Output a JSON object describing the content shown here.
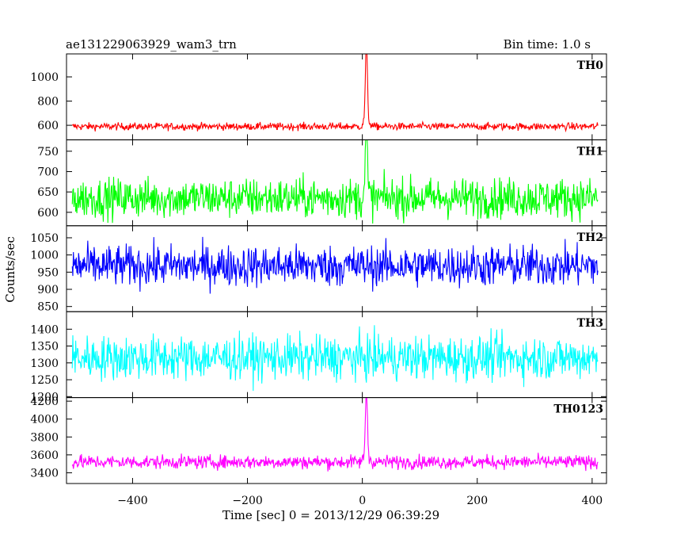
{
  "title": "ae131229063929_wam3_trn",
  "bin_time": "Bin time: 1.0 s",
  "chart_data": {
    "type": "line",
    "title": "ae131229063929_wam3_trn",
    "bin_time": "Bin time: 1.0 s",
    "xlabel": "Time [sec] 0 = 2013/12/29 06:39:29",
    "ylabel": "Counts/sec",
    "xlim": [
      -515,
      425
    ],
    "x_ticks": [
      -400,
      -200,
      0,
      200,
      400
    ],
    "x_tick_labels": [
      "−400",
      "−200",
      "0",
      "200",
      "400"
    ],
    "x_range": [
      -505,
      410
    ],
    "grid": false,
    "panels": [
      {
        "name": "TH0",
        "color": "#ff0000",
        "ylim": [
          480,
          1190
        ],
        "yticks": [
          600,
          800,
          1000
        ],
        "baseline": 590,
        "noise": 28,
        "peak_x": 7,
        "peak": 1190,
        "values": [
          {
            "x": -500,
            "y": 596
          },
          {
            "x": -300,
            "y": 584
          },
          {
            "x": -100,
            "y": 592
          },
          {
            "x": 0,
            "y": 640
          },
          {
            "x": 5,
            "y": 1000
          },
          {
            "x": 7,
            "y": 1190
          },
          {
            "x": 15,
            "y": 620
          },
          {
            "x": 200,
            "y": 590
          },
          {
            "x": 410,
            "y": 600
          }
        ]
      },
      {
        "name": "TH1",
        "color": "#00ff00",
        "ylim": [
          567,
          778
        ],
        "yticks": [
          600,
          650,
          700,
          750
        ],
        "baseline": 635,
        "noise": 45,
        "peak_x": 7,
        "peak": 778,
        "values": [
          {
            "x": -500,
            "y": 640
          },
          {
            "x": -300,
            "y": 630
          },
          {
            "x": -100,
            "y": 635
          },
          {
            "x": 7,
            "y": 778
          },
          {
            "x": 200,
            "y": 640
          },
          {
            "x": 410,
            "y": 650
          }
        ]
      },
      {
        "name": "TH2",
        "color": "#0000ff",
        "ylim": [
          835,
          1085
        ],
        "yticks": [
          850,
          900,
          950,
          1000,
          1050
        ],
        "baseline": 968,
        "noise": 55,
        "peak_x": null,
        "peak": null,
        "values": [
          {
            "x": -500,
            "y": 970
          },
          {
            "x": -300,
            "y": 965
          },
          {
            "x": 0,
            "y": 968
          },
          {
            "x": 200,
            "y": 960
          },
          {
            "x": 410,
            "y": 975
          }
        ]
      },
      {
        "name": "TH3",
        "color": "#00ffff",
        "ylim": [
          1197,
          1452
        ],
        "yticks": [
          1200,
          1250,
          1300,
          1350,
          1400
        ],
        "baseline": 1315,
        "noise": 60,
        "peak_x": null,
        "peak": null,
        "values": [
          {
            "x": -500,
            "y": 1320
          },
          {
            "x": -300,
            "y": 1310
          },
          {
            "x": 0,
            "y": 1315
          },
          {
            "x": 200,
            "y": 1318
          },
          {
            "x": 410,
            "y": 1325
          }
        ]
      },
      {
        "name": "TH0123",
        "color": "#ff00ff",
        "ylim": [
          3280,
          4240
        ],
        "yticks": [
          3400,
          3600,
          3800,
          4000,
          4200
        ],
        "baseline": 3520,
        "noise": 70,
        "peak_x": 7,
        "peak": 4230,
        "values": [
          {
            "x": -500,
            "y": 3560
          },
          {
            "x": -300,
            "y": 3500
          },
          {
            "x": -100,
            "y": 3520
          },
          {
            "x": 7,
            "y": 4230
          },
          {
            "x": 200,
            "y": 3510
          },
          {
            "x": 410,
            "y": 3550
          }
        ]
      }
    ]
  }
}
